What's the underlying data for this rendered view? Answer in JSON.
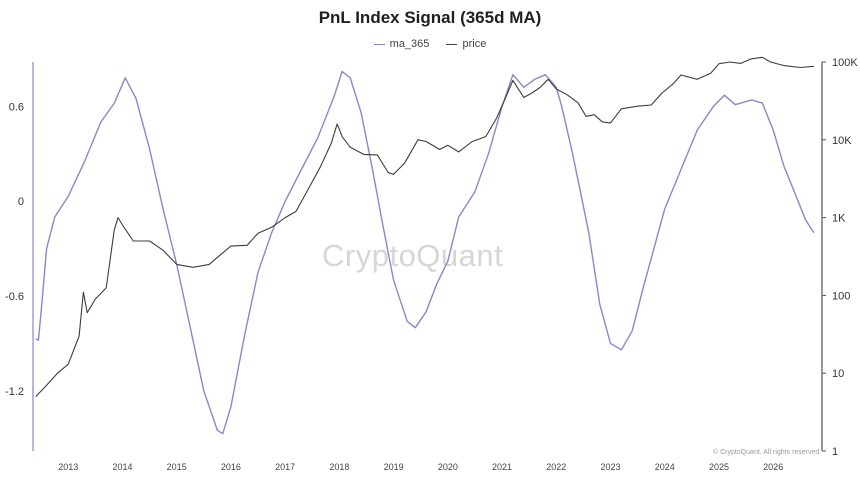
{
  "chart_data": {
    "type": "line",
    "title": "PnL Index Signal (365d MA)",
    "watermark": "CryptoQuant",
    "copyright": "© CryptoQuant. All rights reserved",
    "legend_position": "top-center",
    "grid": false,
    "x_ticks": [
      "2013",
      "2014",
      "2015",
      "2016",
      "2017",
      "2018",
      "2019",
      "2020",
      "2021",
      "2022",
      "2023",
      "2024",
      "2025",
      "2026"
    ],
    "xlim": [
      2012.35,
      2026.9
    ],
    "y_left": {
      "ticks": [
        "0.6",
        "0",
        "-0.6",
        "-1.2"
      ],
      "tick_values": [
        0.6,
        0,
        -0.6,
        -1.2
      ],
      "lim": [
        -1.58,
        0.88
      ]
    },
    "y_right": {
      "scale": "log",
      "ticks": [
        "100K",
        "10K",
        "1K",
        "100",
        "10",
        "1"
      ],
      "tick_values": [
        100000,
        10000,
        1000,
        100,
        10,
        1
      ],
      "lim": [
        1,
        100000
      ]
    },
    "series": [
      {
        "name": "ma_365",
        "axis": "left",
        "color": "#8a87c9",
        "x": [
          2012.4,
          2012.45,
          2012.5,
          2012.6,
          2012.75,
          2013.0,
          2013.3,
          2013.6,
          2013.85,
          2014.05,
          2014.25,
          2014.5,
          2014.75,
          2015.0,
          2015.25,
          2015.5,
          2015.75,
          2015.85,
          2016.0,
          2016.25,
          2016.5,
          2016.75,
          2017.0,
          2017.3,
          2017.6,
          2017.9,
          2018.05,
          2018.2,
          2018.4,
          2018.6,
          2018.8,
          2019.0,
          2019.25,
          2019.4,
          2019.6,
          2019.8,
          2020.0,
          2020.2,
          2020.5,
          2020.75,
          2021.0,
          2021.2,
          2021.4,
          2021.6,
          2021.8,
          2022.0,
          2022.1,
          2022.3,
          2022.6,
          2022.8,
          2023.0,
          2023.2,
          2023.4,
          2023.6,
          2023.8,
          2024.0,
          2024.3,
          2024.6,
          2024.9,
          2025.1,
          2025.3,
          2025.6,
          2025.8,
          2026.0,
          2026.2,
          2026.4,
          2026.6,
          2026.75
        ],
        "y": [
          -0.87,
          -0.88,
          -0.7,
          -0.3,
          -0.1,
          0.03,
          0.25,
          0.5,
          0.62,
          0.78,
          0.65,
          0.33,
          -0.05,
          -0.4,
          -0.8,
          -1.2,
          -1.45,
          -1.47,
          -1.3,
          -0.85,
          -0.45,
          -0.2,
          0.0,
          0.2,
          0.4,
          0.66,
          0.82,
          0.78,
          0.56,
          0.22,
          -0.15,
          -0.5,
          -0.76,
          -0.8,
          -0.7,
          -0.52,
          -0.38,
          -0.1,
          0.06,
          0.3,
          0.6,
          0.8,
          0.72,
          0.77,
          0.8,
          0.72,
          0.6,
          0.3,
          -0.2,
          -0.65,
          -0.9,
          -0.94,
          -0.82,
          -0.55,
          -0.3,
          -0.05,
          0.2,
          0.45,
          0.6,
          0.67,
          0.61,
          0.64,
          0.62,
          0.45,
          0.22,
          0.05,
          -0.12,
          -0.2
        ]
      },
      {
        "name": "price",
        "axis": "right",
        "color": "#3c3c3c",
        "x": [
          2012.4,
          2012.6,
          2012.8,
          2013.0,
          2013.2,
          2013.28,
          2013.35,
          2013.5,
          2013.7,
          2013.85,
          2013.92,
          2014.0,
          2014.2,
          2014.5,
          2014.75,
          2015.0,
          2015.3,
          2015.6,
          2015.8,
          2016.0,
          2016.3,
          2016.5,
          2016.75,
          2017.0,
          2017.2,
          2017.45,
          2017.65,
          2017.85,
          2017.96,
          2018.05,
          2018.2,
          2018.45,
          2018.7,
          2018.9,
          2019.0,
          2019.2,
          2019.45,
          2019.6,
          2019.85,
          2020.0,
          2020.2,
          2020.45,
          2020.7,
          2020.9,
          2021.05,
          2021.2,
          2021.4,
          2021.55,
          2021.7,
          2021.85,
          2022.0,
          2022.2,
          2022.4,
          2022.55,
          2022.7,
          2022.85,
          2023.0,
          2023.2,
          2023.5,
          2023.75,
          2023.95,
          2024.15,
          2024.3,
          2024.6,
          2024.85,
          2025.0,
          2025.2,
          2025.4,
          2025.6,
          2025.8,
          2025.95,
          2026.2,
          2026.5,
          2026.75
        ],
        "y": [
          5,
          7,
          10,
          13,
          30,
          110,
          60,
          90,
          125,
          700,
          1000,
          800,
          500,
          500,
          380,
          250,
          230,
          250,
          330,
          430,
          440,
          630,
          750,
          1000,
          1200,
          2500,
          4500,
          9000,
          16000,
          11000,
          8000,
          6500,
          6400,
          3800,
          3600,
          5000,
          10000,
          9500,
          7500,
          8500,
          7000,
          9500,
          11000,
          19000,
          33000,
          58000,
          35000,
          40000,
          47000,
          60000,
          45000,
          38000,
          30000,
          20000,
          21000,
          17000,
          16500,
          25000,
          27000,
          28000,
          40000,
          52000,
          68000,
          60000,
          72000,
          95000,
          100000,
          96000,
          110000,
          115000,
          100000,
          90000,
          85000,
          88000
        ]
      }
    ]
  }
}
